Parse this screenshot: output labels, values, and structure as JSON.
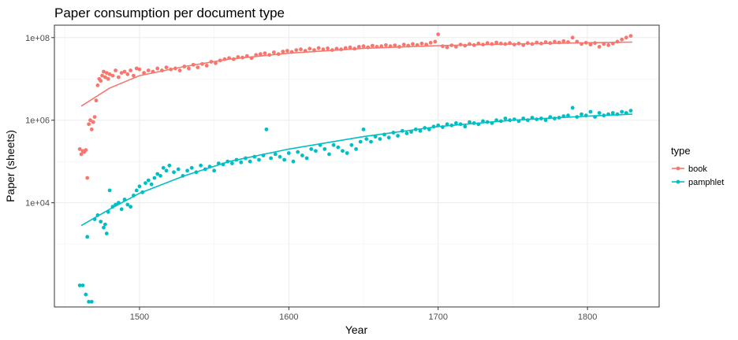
{
  "chart_data": {
    "type": "scatter",
    "title": "Paper consumption per document type",
    "xlabel": "Year",
    "ylabel": "Paper (sheets)",
    "x_ticks": [
      1500,
      1600,
      1700,
      1800
    ],
    "y_ticks": [
      {
        "value": 10000,
        "label": "1e+04"
      },
      {
        "value": 1000000,
        "label": "1e+06"
      },
      {
        "value": 100000000,
        "label": "1e+08"
      }
    ],
    "xlim": [
      1443,
      1848
    ],
    "ylim": [
      30,
      200000000
    ],
    "y_scale": "log10",
    "grid": true,
    "legend": {
      "title": "type",
      "position": "right"
    },
    "series": [
      {
        "name": "book",
        "color": "#F8766D",
        "points": [
          [
            1460,
            200000
          ],
          [
            1461,
            150000
          ],
          [
            1462,
            180000
          ],
          [
            1463,
            170000
          ],
          [
            1464,
            190000
          ],
          [
            1465,
            40000
          ],
          [
            1466,
            800000
          ],
          [
            1467,
            1000000
          ],
          [
            1468,
            600000
          ],
          [
            1469,
            900000
          ],
          [
            1470,
            1200000
          ],
          [
            1471,
            3000000
          ],
          [
            1472,
            7000000
          ],
          [
            1473,
            10000000
          ],
          [
            1474,
            9000000
          ],
          [
            1475,
            12000000
          ],
          [
            1476,
            15000000
          ],
          [
            1477,
            11000000
          ],
          [
            1478,
            14000000
          ],
          [
            1479,
            10000000
          ],
          [
            1480,
            13000000
          ],
          [
            1482,
            12000000
          ],
          [
            1484,
            16000000
          ],
          [
            1486,
            11000000
          ],
          [
            1488,
            14000000
          ],
          [
            1490,
            15000000
          ],
          [
            1492,
            13000000
          ],
          [
            1494,
            16000000
          ],
          [
            1496,
            12000000
          ],
          [
            1498,
            18000000
          ],
          [
            1500,
            17000000
          ],
          [
            1503,
            14000000
          ],
          [
            1506,
            16000000
          ],
          [
            1509,
            15000000
          ],
          [
            1512,
            18000000
          ],
          [
            1515,
            16000000
          ],
          [
            1518,
            19000000
          ],
          [
            1521,
            17000000
          ],
          [
            1524,
            18000000
          ],
          [
            1527,
            16000000
          ],
          [
            1530,
            20000000
          ],
          [
            1533,
            18000000
          ],
          [
            1536,
            22000000
          ],
          [
            1539,
            19000000
          ],
          [
            1542,
            23000000
          ],
          [
            1545,
            21000000
          ],
          [
            1548,
            26000000
          ],
          [
            1551,
            24000000
          ],
          [
            1554,
            28000000
          ],
          [
            1557,
            30000000
          ],
          [
            1560,
            32000000
          ],
          [
            1563,
            30000000
          ],
          [
            1566,
            34000000
          ],
          [
            1569,
            33000000
          ],
          [
            1572,
            36000000
          ],
          [
            1575,
            32000000
          ],
          [
            1578,
            38000000
          ],
          [
            1581,
            40000000
          ],
          [
            1584,
            42000000
          ],
          [
            1587,
            38000000
          ],
          [
            1590,
            44000000
          ],
          [
            1593,
            40000000
          ],
          [
            1596,
            46000000
          ],
          [
            1599,
            48000000
          ],
          [
            1602,
            45000000
          ],
          [
            1605,
            50000000
          ],
          [
            1608,
            52000000
          ],
          [
            1611,
            48000000
          ],
          [
            1614,
            54000000
          ],
          [
            1617,
            50000000
          ],
          [
            1620,
            56000000
          ],
          [
            1623,
            52000000
          ],
          [
            1626,
            55000000
          ],
          [
            1629,
            50000000
          ],
          [
            1632,
            54000000
          ],
          [
            1635,
            52000000
          ],
          [
            1638,
            56000000
          ],
          [
            1641,
            58000000
          ],
          [
            1644,
            54000000
          ],
          [
            1647,
            60000000
          ],
          [
            1650,
            62000000
          ],
          [
            1653,
            58000000
          ],
          [
            1656,
            64000000
          ],
          [
            1659,
            60000000
          ],
          [
            1662,
            62000000
          ],
          [
            1665,
            66000000
          ],
          [
            1668,
            62000000
          ],
          [
            1671,
            65000000
          ],
          [
            1674,
            60000000
          ],
          [
            1677,
            68000000
          ],
          [
            1680,
            64000000
          ],
          [
            1683,
            70000000
          ],
          [
            1686,
            66000000
          ],
          [
            1689,
            72000000
          ],
          [
            1692,
            68000000
          ],
          [
            1695,
            75000000
          ],
          [
            1698,
            80000000
          ],
          [
            1700,
            120000000
          ],
          [
            1703,
            62000000
          ],
          [
            1706,
            58000000
          ],
          [
            1709,
            65000000
          ],
          [
            1712,
            60000000
          ],
          [
            1715,
            68000000
          ],
          [
            1718,
            64000000
          ],
          [
            1721,
            70000000
          ],
          [
            1724,
            66000000
          ],
          [
            1727,
            72000000
          ],
          [
            1730,
            68000000
          ],
          [
            1733,
            74000000
          ],
          [
            1736,
            70000000
          ],
          [
            1739,
            76000000
          ],
          [
            1742,
            72000000
          ],
          [
            1745,
            70000000
          ],
          [
            1748,
            74000000
          ],
          [
            1751,
            68000000
          ],
          [
            1754,
            72000000
          ],
          [
            1757,
            66000000
          ],
          [
            1760,
            74000000
          ],
          [
            1763,
            70000000
          ],
          [
            1766,
            76000000
          ],
          [
            1769,
            72000000
          ],
          [
            1772,
            78000000
          ],
          [
            1775,
            74000000
          ],
          [
            1778,
            80000000
          ],
          [
            1781,
            76000000
          ],
          [
            1784,
            82000000
          ],
          [
            1787,
            78000000
          ],
          [
            1790,
            100000000
          ],
          [
            1793,
            80000000
          ],
          [
            1796,
            70000000
          ],
          [
            1799,
            75000000
          ],
          [
            1802,
            68000000
          ],
          [
            1805,
            74000000
          ],
          [
            1808,
            60000000
          ],
          [
            1811,
            70000000
          ],
          [
            1814,
            66000000
          ],
          [
            1817,
            72000000
          ],
          [
            1820,
            80000000
          ],
          [
            1823,
            90000000
          ],
          [
            1826,
            100000000
          ],
          [
            1829,
            110000000
          ]
        ],
        "trend": [
          [
            1461,
            2200000
          ],
          [
            1480,
            6000000
          ],
          [
            1500,
            12000000
          ],
          [
            1530,
            20000000
          ],
          [
            1560,
            30000000
          ],
          [
            1600,
            42000000
          ],
          [
            1650,
            55000000
          ],
          [
            1700,
            64000000
          ],
          [
            1750,
            70000000
          ],
          [
            1800,
            75000000
          ],
          [
            1830,
            78000000
          ]
        ]
      },
      {
        "name": "pamphlet",
        "color": "#00BFC4",
        "points": [
          [
            1460,
            100
          ],
          [
            1462,
            100
          ],
          [
            1464,
            60
          ],
          [
            1465,
            1500
          ],
          [
            1466,
            40
          ],
          [
            1468,
            40
          ],
          [
            1470,
            4000
          ],
          [
            1472,
            5000
          ],
          [
            1474,
            3500
          ],
          [
            1476,
            2500
          ],
          [
            1477,
            3000
          ],
          [
            1478,
            1800
          ],
          [
            1479,
            6000
          ],
          [
            1480,
            20000
          ],
          [
            1482,
            8000
          ],
          [
            1484,
            9000
          ],
          [
            1486,
            10000
          ],
          [
            1488,
            7000
          ],
          [
            1490,
            12000
          ],
          [
            1492,
            9000
          ],
          [
            1494,
            8000
          ],
          [
            1496,
            15000
          ],
          [
            1498,
            20000
          ],
          [
            1500,
            25000
          ],
          [
            1502,
            18000
          ],
          [
            1504,
            30000
          ],
          [
            1506,
            35000
          ],
          [
            1508,
            28000
          ],
          [
            1510,
            40000
          ],
          [
            1512,
            50000
          ],
          [
            1514,
            45000
          ],
          [
            1516,
            70000
          ],
          [
            1518,
            60000
          ],
          [
            1520,
            80000
          ],
          [
            1523,
            55000
          ],
          [
            1526,
            65000
          ],
          [
            1529,
            45000
          ],
          [
            1532,
            60000
          ],
          [
            1535,
            70000
          ],
          [
            1538,
            55000
          ],
          [
            1541,
            80000
          ],
          [
            1544,
            65000
          ],
          [
            1547,
            75000
          ],
          [
            1550,
            60000
          ],
          [
            1553,
            90000
          ],
          [
            1556,
            85000
          ],
          [
            1559,
            100000
          ],
          [
            1562,
            90000
          ],
          [
            1565,
            110000
          ],
          [
            1568,
            95000
          ],
          [
            1571,
            120000
          ],
          [
            1574,
            100000
          ],
          [
            1577,
            130000
          ],
          [
            1580,
            110000
          ],
          [
            1583,
            140000
          ],
          [
            1585,
            600000
          ],
          [
            1588,
            120000
          ],
          [
            1591,
            150000
          ],
          [
            1594,
            130000
          ],
          [
            1597,
            110000
          ],
          [
            1600,
            160000
          ],
          [
            1603,
            100000
          ],
          [
            1606,
            170000
          ],
          [
            1609,
            140000
          ],
          [
            1612,
            120000
          ],
          [
            1615,
            200000
          ],
          [
            1618,
            180000
          ],
          [
            1621,
            250000
          ],
          [
            1624,
            200000
          ],
          [
            1627,
            150000
          ],
          [
            1630,
            250000
          ],
          [
            1633,
            220000
          ],
          [
            1636,
            180000
          ],
          [
            1639,
            160000
          ],
          [
            1642,
            250000
          ],
          [
            1645,
            200000
          ],
          [
            1648,
            300000
          ],
          [
            1650,
            600000
          ],
          [
            1652,
            350000
          ],
          [
            1655,
            300000
          ],
          [
            1658,
            400000
          ],
          [
            1661,
            350000
          ],
          [
            1664,
            450000
          ],
          [
            1667,
            380000
          ],
          [
            1670,
            500000
          ],
          [
            1673,
            420000
          ],
          [
            1676,
            550000
          ],
          [
            1679,
            480000
          ],
          [
            1682,
            520000
          ],
          [
            1685,
            600000
          ],
          [
            1688,
            550000
          ],
          [
            1691,
            650000
          ],
          [
            1694,
            600000
          ],
          [
            1697,
            700000
          ],
          [
            1700,
            750000
          ],
          [
            1703,
            680000
          ],
          [
            1706,
            800000
          ],
          [
            1709,
            750000
          ],
          [
            1712,
            850000
          ],
          [
            1715,
            800000
          ],
          [
            1718,
            700000
          ],
          [
            1721,
            900000
          ],
          [
            1724,
            850000
          ],
          [
            1727,
            800000
          ],
          [
            1730,
            950000
          ],
          [
            1733,
            900000
          ],
          [
            1736,
            850000
          ],
          [
            1739,
            1000000
          ],
          [
            1742,
            950000
          ],
          [
            1745,
            1100000
          ],
          [
            1748,
            1000000
          ],
          [
            1751,
            1050000
          ],
          [
            1754,
            950000
          ],
          [
            1757,
            1100000
          ],
          [
            1760,
            1000000
          ],
          [
            1763,
            1150000
          ],
          [
            1766,
            1050000
          ],
          [
            1769,
            1100000
          ],
          [
            1772,
            1000000
          ],
          [
            1775,
            1200000
          ],
          [
            1778,
            1100000
          ],
          [
            1781,
            1150000
          ],
          [
            1784,
            1250000
          ],
          [
            1787,
            1300000
          ],
          [
            1790,
            2000000
          ],
          [
            1793,
            1200000
          ],
          [
            1796,
            1400000
          ],
          [
            1799,
            1300000
          ],
          [
            1802,
            1600000
          ],
          [
            1805,
            1200000
          ],
          [
            1808,
            1500000
          ],
          [
            1811,
            1300000
          ],
          [
            1814,
            1400000
          ],
          [
            1817,
            1500000
          ],
          [
            1820,
            1400000
          ],
          [
            1823,
            1600000
          ],
          [
            1826,
            1500000
          ],
          [
            1829,
            1700000
          ]
        ],
        "trend": [
          [
            1461,
            2800
          ],
          [
            1480,
            7000
          ],
          [
            1500,
            17000
          ],
          [
            1530,
            45000
          ],
          [
            1560,
            100000
          ],
          [
            1600,
            200000
          ],
          [
            1650,
            400000
          ],
          [
            1700,
            700000
          ],
          [
            1750,
            1000000
          ],
          [
            1800,
            1250000
          ],
          [
            1830,
            1400000
          ]
        ]
      }
    ]
  }
}
